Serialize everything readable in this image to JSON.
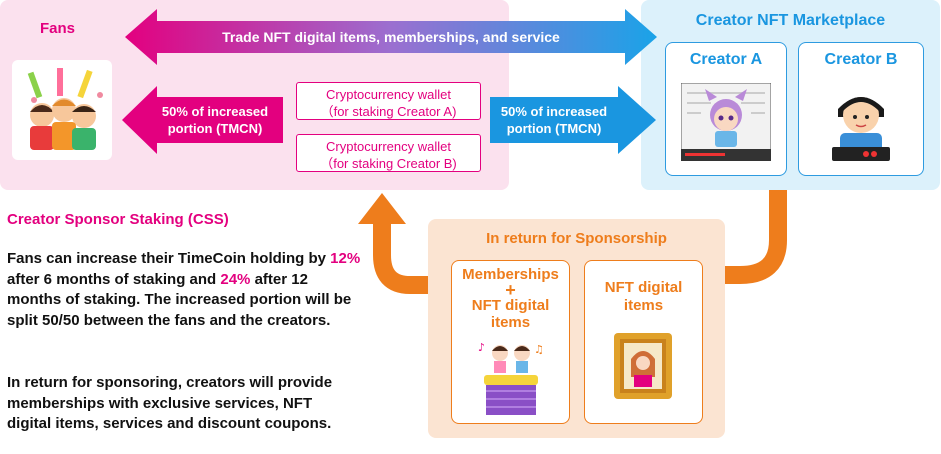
{
  "fans": {
    "title": "Fans",
    "arrow_left_label_1": "50% of increased",
    "arrow_left_label_2": "portion (TMCN)"
  },
  "top_arrow": {
    "label": "Trade NFT digital items, memberships, and service"
  },
  "wallets": [
    {
      "line1": "Cryptocurrency wallet",
      "line2": "（for staking Creator A)"
    },
    {
      "line1": "Cryptocurrency wallet",
      "line2": "（for staking Creator B)"
    }
  ],
  "middle_arrow": {
    "line1": "50% of increased",
    "line2": "portion (TMCN)"
  },
  "marketplace": {
    "title": "Creator NFT Marketplace",
    "creator_a": "Creator A",
    "creator_b": "Creator B"
  },
  "css_section": {
    "heading": "Creator Sponsor Staking (CSS)",
    "p1_a": "Fans can increase their TimeCoin holding by ",
    "p1_pct1": "12%",
    "p1_b": " after 6 months of staking and ",
    "p1_pct2": "24%",
    "p1_c": " after 12 months of staking. The increased portion will be split 50/50 between the fans and the creators.",
    "p2": "In return for sponsoring, creators will provide memberships with exclusive services, NFT digital items, services and discount coupons."
  },
  "return_section": {
    "title": "In return for Sponsorship",
    "box1_line1": "Memberships",
    "box1_plus": "+",
    "box1_line2": "NFT digital",
    "box1_line3": "items",
    "box2_line1": "NFT digital",
    "box2_line2": "items"
  },
  "colors": {
    "pink": "#e3007f",
    "blue": "#1a96e0",
    "orange": "#ee7d1c",
    "fans_bg": "#fbe1ee",
    "market_bg": "#dcf1fb",
    "return_bg": "#fbe4d2"
  }
}
